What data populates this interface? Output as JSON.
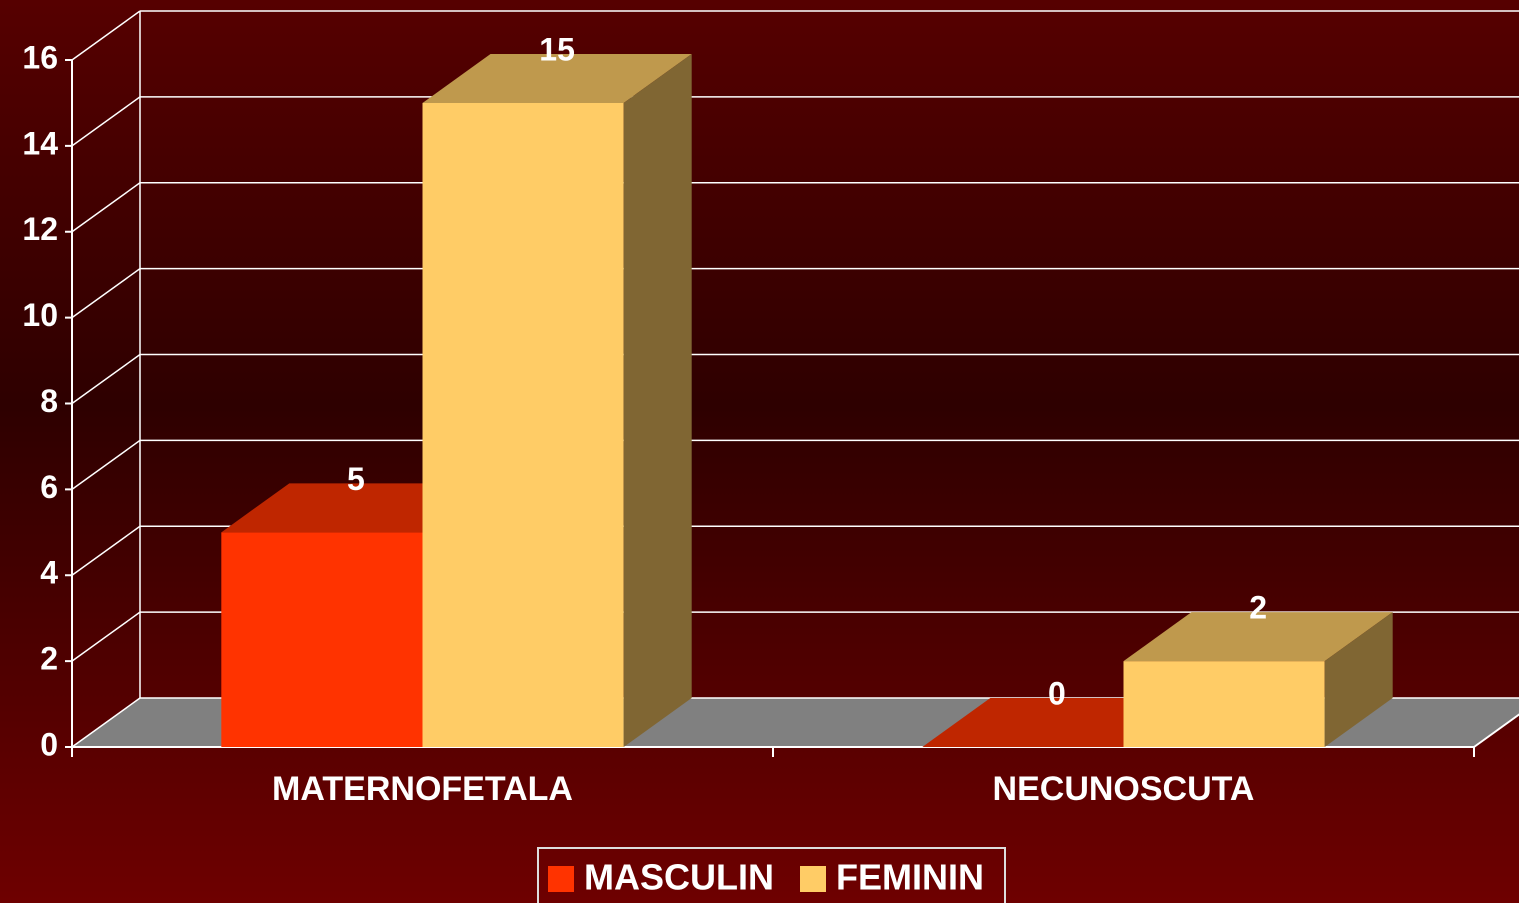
{
  "chart_data": {
    "type": "bar3d",
    "categories": [
      "MATERNOFETALA",
      "NECUNOSCUTA"
    ],
    "series": [
      {
        "name": "MASCULIN",
        "color": "#ff3300",
        "values": [
          5,
          0
        ]
      },
      {
        "name": "FEMININ",
        "color": "#ffcc66",
        "values": [
          15,
          2
        ]
      }
    ],
    "ylim": [
      0,
      16
    ],
    "yticks": [
      0,
      2,
      4,
      6,
      8,
      10,
      12,
      14,
      16
    ],
    "grid": true,
    "legend": "bottom"
  }
}
